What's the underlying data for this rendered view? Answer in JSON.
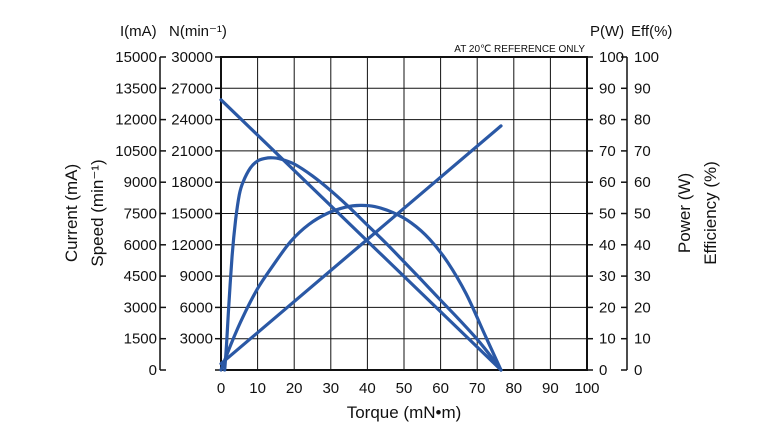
{
  "chart_data": {
    "type": "line",
    "note": "AT 20℃ REFERENCE ONLY",
    "colors": {
      "curve": "#2a58a5",
      "frame": "#111111",
      "grid": "#111111"
    },
    "x_axis": {
      "label": "Torque (mN•m)",
      "range": [
        0,
        100
      ],
      "ticks": [
        "0",
        "10",
        "20",
        "30",
        "40",
        "50",
        "60",
        "70",
        "80",
        "90",
        "100"
      ]
    },
    "left_axes": {
      "current": {
        "header": "I(mA)",
        "title": "Current (mA)",
        "range": [
          0,
          15000
        ],
        "ticks": [
          "0",
          "1500",
          "3000",
          "4500",
          "6000",
          "7500",
          "9000",
          "10500",
          "12000",
          "13500",
          "15000"
        ]
      },
      "speed": {
        "header": "N(min⁻¹)",
        "title": "Speed (min⁻¹)",
        "range": [
          0,
          30000
        ],
        "ticks": [
          "",
          "3000",
          "6000",
          "9000",
          "12000",
          "15000",
          "18000",
          "21000",
          "24000",
          "27000",
          "30000"
        ]
      }
    },
    "right_axes": {
      "power": {
        "header": "P(W)",
        "title": "Power (W)",
        "range": [
          0,
          100
        ],
        "ticks": [
          "0",
          "10",
          "20",
          "30",
          "40",
          "50",
          "60",
          "70",
          "80",
          "90",
          "100"
        ]
      },
      "efficiency": {
        "header": "Eff(%)",
        "title": "Efficiency (%)",
        "range": [
          0,
          100
        ],
        "ticks": [
          "0",
          "10",
          "20",
          "30",
          "40",
          "50",
          "60",
          "70",
          "80",
          "90",
          "100"
        ]
      }
    },
    "grid": true,
    "series": [
      {
        "axis": "speed",
        "x": [
          0,
          76.5
        ],
        "y": [
          25900,
          0
        ]
      },
      {
        "axis": "current",
        "x": [
          0,
          76.5
        ],
        "y": [
          300,
          11700
        ]
      },
      {
        "axis": "power",
        "x": [
          0,
          3,
          6,
          10,
          14,
          19,
          24,
          29,
          34,
          38,
          42,
          47,
          52,
          57,
          62,
          67,
          72,
          76.5
        ],
        "y": [
          0,
          9,
          17,
          26,
          33,
          41,
          46.5,
          50,
          52,
          52.6,
          52.2,
          50.3,
          47,
          41.8,
          34.3,
          24.3,
          11.5,
          0
        ]
      },
      {
        "axis": "efficiency",
        "x": [
          1,
          1.5,
          2,
          3,
          4,
          5,
          6,
          8,
          10,
          12,
          14,
          16,
          20,
          25,
          30,
          35,
          40,
          45,
          50,
          55,
          60,
          65,
          70,
          74,
          76.5
        ],
        "y": [
          0,
          8,
          18,
          36,
          48,
          56,
          60,
          64.5,
          66.8,
          67.6,
          67.8,
          67.5,
          65.8,
          62,
          57.3,
          52,
          46.3,
          40.6,
          34.6,
          28.5,
          22.3,
          16.2,
          9.8,
          4,
          0
        ]
      }
    ]
  }
}
